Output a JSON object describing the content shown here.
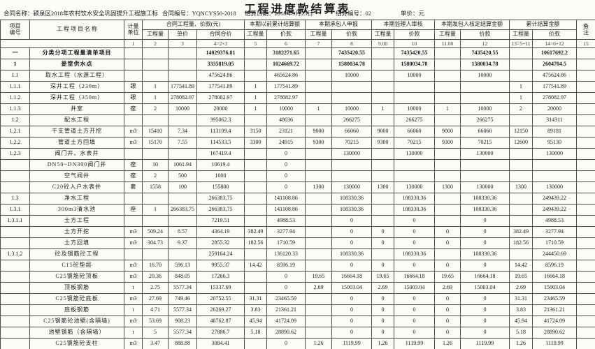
{
  "title": "工程进度款结算表",
  "info": {
    "contract_name_label": "合同名称：",
    "contract_name": "颍泉区2018年农村饮水安全巩固提升工程施工标",
    "contract_no_label": "合同编号：",
    "contract_no": "YQNCYS50-2018",
    "date_label": "结算日期：",
    "date": "2018年9月25日",
    "settle_no_label": "结算编号：",
    "settle_no": "02",
    "unit_label": "单价：",
    "unit": "元"
  },
  "table_header": {
    "col_project_no": "项目\n编号",
    "col_name": "工 程 项 目 名 称",
    "col_unit": "计量\n单位",
    "grp_contract": "合同工程量、价款(元)",
    "grp_prev": "本期以前累计结算额",
    "grp_contractor": "本期承包人申报",
    "grp_supervisor": "本期监理人审核",
    "grp_employer": "本期发包人核定结算金额",
    "grp_cumulative": "累计结算金额",
    "col_remark": "备\n注",
    "sub_headers": [
      "工程量",
      "单价",
      "合同合价",
      "工程量",
      "价款",
      "工程量",
      "价款",
      "工程量",
      "价款",
      "工程量",
      "价款",
      "工程量",
      "价款"
    ],
    "numbering": [
      "1",
      "2",
      "3",
      "4=2×3",
      "5",
      "6",
      "7",
      "8",
      "9.00",
      "10",
      "11.00",
      "12",
      "13=5+11",
      "14=6+12",
      "15"
    ]
  },
  "rows": [
    {
      "no": "一",
      "name": "分类分项工程量清单项目",
      "unit": "",
      "qty": "",
      "price": "",
      "total": "14029376.81",
      "c5": "",
      "c6": "3182271.65",
      "c7": "",
      "c8": "7435420.55",
      "c9": "",
      "c10": "7435420.55",
      "c11": "",
      "c12": "7435420.55",
      "c13": "",
      "c14": "10617692.2",
      "rm": "",
      "bold": true
    },
    {
      "no": "1",
      "name": "姜堂供水点",
      "unit": "",
      "qty": "",
      "price": "",
      "total": "3335819.05",
      "c5": "",
      "c6": "1024669.72",
      "c7": "",
      "c8": "1580034.78",
      "c9": "",
      "c10": "1580034.78",
      "c11": "",
      "c12": "1580034.78",
      "c13": "",
      "c14": "2604704.5",
      "rm": "",
      "bold": true
    },
    {
      "no": "1.1",
      "name": "取水工程（水源工程）",
      "unit": "",
      "qty": "",
      "price": "",
      "total": "475624.86",
      "c5": "",
      "c6": "465624.86",
      "c7": "",
      "c8": "10000",
      "c9": "",
      "c10": "10000",
      "c11": "",
      "c12": "10000",
      "c13": "",
      "c14": "475624.86",
      "rm": "",
      "bold": false
    },
    {
      "no": "1.1.1",
      "name": "深井工程（230m）",
      "unit": "眼",
      "qty": "1",
      "price": "177541.89",
      "total": "177541.89",
      "c5": "1",
      "c6": "177541.89",
      "c7": "",
      "c8": "",
      "c9": "",
      "c10": "",
      "c11": "",
      "c12": "",
      "c13": "1",
      "c14": "177541.89",
      "rm": "",
      "bold": false
    },
    {
      "no": "1.1.2",
      "name": "深井工程（350m）",
      "unit": "眼",
      "qty": "1",
      "price": "278082.97",
      "total": "278082.97",
      "c5": "1",
      "c6": "278082.97",
      "c7": "",
      "c8": "",
      "c9": "",
      "c10": "",
      "c11": "",
      "c12": "",
      "c13": "1",
      "c14": "278082.97",
      "rm": "",
      "bold": false
    },
    {
      "no": "1.1.3",
      "name": "井室",
      "unit": "座",
      "qty": "2",
      "price": "10000",
      "total": "20000",
      "c5": "1",
      "c6": "10000",
      "c7": "1",
      "c8": "10000",
      "c9": "1",
      "c10": "10000",
      "c11": "1",
      "c12": "10000",
      "c13": "2",
      "c14": "20000",
      "rm": "",
      "bold": false
    },
    {
      "no": "1.2",
      "name": "配水工程",
      "unit": "",
      "qty": "",
      "price": "",
      "total": "395062.3",
      "c5": "",
      "c6": "48036",
      "c7": "",
      "c8": "266275",
      "c9": "",
      "c10": "266275",
      "c11": "",
      "c12": "266275",
      "c13": "",
      "c14": "314311",
      "rm": "",
      "bold": false
    },
    {
      "no": "1.2.1",
      "name": "干支管道土方开挖",
      "unit": "m3",
      "qty": "15410",
      "price": "7.34",
      "total": "113109.4",
      "c5": "3150",
      "c6": "23121",
      "c7": "9000",
      "c8": "66060",
      "c9": "9000",
      "c10": "66060",
      "c11": "9000",
      "c12": "66060",
      "c13": "12150",
      "c14": "89181",
      "rm": "",
      "bold": false
    },
    {
      "no": "1.2.2",
      "name": "管道土方回填",
      "unit": "m3",
      "qty": "15170",
      "price": "7.55",
      "total": "114533.5",
      "c5": "3300",
      "c6": "24915",
      "c7": "9300",
      "c8": "70215",
      "c9": "9300",
      "c10": "70215",
      "c11": "9300",
      "c12": "70215",
      "c13": "12600",
      "c14": "95130",
      "rm": "",
      "bold": false
    },
    {
      "no": "1.2.3",
      "name": "阀门井、水表井",
      "unit": "",
      "qty": "",
      "price": "",
      "total": "167419.4",
      "c5": "",
      "c6": "0",
      "c7": "",
      "c8": "130000",
      "c9": "",
      "c10": "130000",
      "c11": "",
      "c12": "130000",
      "c13": "",
      "c14": "130000",
      "rm": "",
      "bold": false
    },
    {
      "no": "",
      "name": "DN50~DN300阀门井",
      "unit": "座",
      "qty": "10",
      "price": "1061.94",
      "total": "10619.4",
      "c5": "",
      "c6": "0",
      "c7": "",
      "c8": "",
      "c9": "",
      "c10": "",
      "c11": "",
      "c12": "",
      "c13": "",
      "c14": "",
      "rm": "",
      "bold": false
    },
    {
      "no": "",
      "name": "空气阀井",
      "unit": "座",
      "qty": "2",
      "price": "500",
      "total": "1000",
      "c5": "",
      "c6": "0",
      "c7": "",
      "c8": "",
      "c9": "",
      "c10": "",
      "c11": "",
      "c12": "",
      "c13": "",
      "c14": "",
      "rm": "",
      "bold": false
    },
    {
      "no": "",
      "name": "C20砼入户水表井",
      "unit": "套",
      "qty": "1558",
      "price": "100",
      "total": "155800",
      "c5": "",
      "c6": "0",
      "c7": "1300",
      "c8": "130000",
      "c9": "1300",
      "c10": "130000",
      "c11": "1300",
      "c12": "130000",
      "c13": "1300",
      "c14": "130000",
      "rm": "",
      "bold": false
    },
    {
      "no": "1.3",
      "name": "净水工程",
      "unit": "",
      "qty": "",
      "price": "",
      "total": "266383.75",
      "c5": "",
      "c6": "141108.86",
      "c7": "",
      "c8": "108330.36",
      "c9": "",
      "c10": "108330.36",
      "c11": "",
      "c12": "108330.36",
      "c13": "",
      "c14": "249439.22",
      "rm": "",
      "bold": false
    },
    {
      "no": "1.3.1",
      "name": "300m3清水池",
      "unit": "座",
      "qty": "1",
      "price": "266383.75",
      "total": "266383.75",
      "c5": "",
      "c6": "141108.86",
      "c7": "",
      "c8": "108330.36",
      "c9": "",
      "c10": "108330.36",
      "c11": "",
      "c12": "108330.36",
      "c13": "",
      "c14": "249439.22",
      "rm": "",
      "bold": false
    },
    {
      "no": "1.3.1.1",
      "name": "土方工程",
      "unit": "",
      "qty": "",
      "price": "",
      "total": "7219.51",
      "c5": "",
      "c6": "4988.53",
      "c7": "",
      "c8": "0",
      "c9": "",
      "c10": "0",
      "c11": "",
      "c12": "0",
      "c13": "",
      "c14": "4988.53",
      "rm": "",
      "bold": false
    },
    {
      "no": "",
      "name": "土方开挖",
      "unit": "m3",
      "qty": "509.24",
      "price": "8.57",
      "total": "4364.19",
      "c5": "382.49",
      "c6": "3277.94",
      "c7": "",
      "c8": "0",
      "c9": "0",
      "c10": "0",
      "c11": "0",
      "c12": "0",
      "c13": "382.49",
      "c14": "3277.94",
      "rm": "",
      "bold": false
    },
    {
      "no": "",
      "name": "土方回填",
      "unit": "m3",
      "qty": "304.73",
      "price": "9.37",
      "total": "2855.32",
      "c5": "182.56",
      "c6": "1710.59",
      "c7": "",
      "c8": "0",
      "c9": "0",
      "c10": "0",
      "c11": "0",
      "c12": "0",
      "c13": "182.56",
      "c14": "1710.59",
      "rm": "",
      "bold": false
    },
    {
      "no": "1.3.1.2",
      "name": "砼及钢筋砼工程",
      "unit": "",
      "qty": "",
      "price": "",
      "total": "259164.24",
      "c5": "",
      "c6": "136120.33",
      "c7": "",
      "c8": "108330.36",
      "c9": "",
      "c10": "108330.36",
      "c11": "",
      "c12": "108330.36",
      "c13": "",
      "c14": "244450.69",
      "rm": "",
      "bold": false
    },
    {
      "no": "",
      "name": "C15砼垫层",
      "unit": "m3",
      "qty": "16.70",
      "price": "596.13",
      "total": "9955.37",
      "c5": "14.42",
      "c6": "8596.19",
      "c7": "",
      "c8": "0",
      "c9": "0",
      "c10": "0",
      "c11": "0",
      "c12": "0",
      "c13": "14.42",
      "c14": "8596.19",
      "rm": "",
      "bold": false
    },
    {
      "no": "",
      "name": "C25钢筋砼顶板",
      "unit": "m3",
      "qty": "20.36",
      "price": "848.05",
      "total": "17266.3",
      "c5": "",
      "c6": "0",
      "c7": "19.65",
      "c8": "16664.18",
      "c9": "19.65",
      "c10": "16664.18",
      "c11": "19.65",
      "c12": "16664.18",
      "c13": "19.65",
      "c14": "16664.18",
      "rm": "",
      "bold": false
    },
    {
      "no": "",
      "name": "顶板钢筋",
      "unit": "t",
      "qty": "2.75",
      "price": "5577.34",
      "total": "15337.69",
      "c5": "",
      "c6": "0",
      "c7": "2.69",
      "c8": "15003.04",
      "c9": "2.69",
      "c10": "15003.04",
      "c11": "2.69",
      "c12": "15003.04",
      "c13": "2.69",
      "c14": "15003.04",
      "rm": "",
      "bold": false
    },
    {
      "no": "",
      "name": "C25钢筋砼底板",
      "unit": "m3",
      "qty": "27.69",
      "price": "749.46",
      "total": "20752.55",
      "c5": "31.31",
      "c6": "23465.59",
      "c7": "",
      "c8": "0",
      "c9": "0",
      "c10": "0",
      "c11": "0",
      "c12": "0",
      "c13": "31.31",
      "c14": "23465.59",
      "rm": "",
      "bold": false
    },
    {
      "no": "",
      "name": "底板钢筋",
      "unit": "t",
      "qty": "4.71",
      "price": "5577.34",
      "total": "26269.27",
      "c5": "3.83",
      "c6": "21361.21",
      "c7": "",
      "c8": "0",
      "c9": "0",
      "c10": "0",
      "c11": "0",
      "c12": "0",
      "c13": "3.83",
      "c14": "21361.21",
      "rm": "",
      "bold": false
    },
    {
      "no": "",
      "name": "C25钢筋砼池壁(含隔墙)",
      "unit": "m3",
      "qty": "53.69",
      "price": "908.23",
      "total": "48762.87",
      "c5": "45.94",
      "c6": "41724.09",
      "c7": "",
      "c8": "0",
      "c9": "0",
      "c10": "0",
      "c11": "0",
      "c12": "0",
      "c13": "45.94",
      "c14": "41724.09",
      "rm": "",
      "bold": false
    },
    {
      "no": "",
      "name": "池壁钢筋（含隔墙）",
      "unit": "t",
      "qty": "5",
      "price": "5577.34",
      "total": "27886.7",
      "c5": "5.18",
      "c6": "28890.62",
      "c7": "",
      "c8": "0",
      "c9": "0",
      "c10": "0",
      "c11": "0",
      "c12": "0",
      "c13": "5.18",
      "c14": "28890.62",
      "rm": "",
      "bold": false
    },
    {
      "no": "",
      "name": "C25钢筋砼支柱",
      "unit": "m3",
      "qty": "3.47",
      "price": "888.88",
      "total": "3084.41",
      "c5": "",
      "c6": "0",
      "c7": "1.26",
      "c8": "1119.99",
      "c9": "1.26",
      "c10": "1119.99",
      "c11": "1.26",
      "c12": "1119.99",
      "c13": "1.26",
      "c14": "1119.99",
      "rm": "",
      "bold": false
    }
  ]
}
